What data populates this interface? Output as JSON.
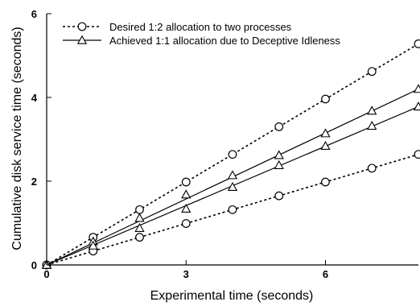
{
  "chart_data": {
    "type": "line",
    "xlabel": "Experimental time (seconds)",
    "ylabel": "Cumulative disk service time (seconds)",
    "xlim": [
      0,
      8
    ],
    "ylim": [
      0,
      6
    ],
    "xticks": [
      0,
      3,
      6
    ],
    "yticks": [
      0,
      2,
      4,
      6
    ],
    "grid": false,
    "legend_position": "top-left",
    "x": [
      0,
      1,
      2,
      3,
      4,
      5,
      6,
      7,
      8
    ],
    "legend": [
      {
        "label": "Desired   1:2 allocation to two processes",
        "marker": "circle",
        "line": "dotted"
      },
      {
        "label": "Achieved 1:1 allocation due to Deceptive Idleness",
        "marker": "triangle",
        "line": "solid"
      }
    ],
    "series": [
      {
        "group": "Desired",
        "line": "dotted",
        "marker": "circle",
        "values": [
          0,
          0.66,
          1.32,
          1.98,
          2.64,
          3.3,
          3.96,
          4.62,
          5.28
        ]
      },
      {
        "group": "Desired",
        "line": "dotted",
        "marker": "circle",
        "values": [
          0,
          0.33,
          0.66,
          0.99,
          1.32,
          1.65,
          1.98,
          2.31,
          2.64
        ]
      },
      {
        "group": "Achieved",
        "line": "solid",
        "marker": "triangle",
        "values": [
          0,
          0.56,
          1.12,
          1.68,
          2.14,
          2.62,
          3.14,
          3.68,
          4.2
        ]
      },
      {
        "group": "Achieved",
        "line": "solid",
        "marker": "triangle",
        "values": [
          0,
          0.46,
          0.88,
          1.34,
          1.86,
          2.38,
          2.84,
          3.32,
          3.78
        ]
      }
    ]
  }
}
